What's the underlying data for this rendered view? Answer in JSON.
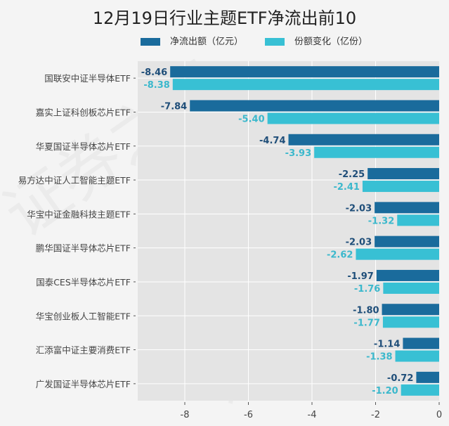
{
  "chart_data": {
    "type": "bar",
    "orientation": "horizontal",
    "title": "12月19日行业主题ETF净流出前10",
    "xlabel": "",
    "ylabel": "",
    "xlim": [
      -9.5,
      0
    ],
    "xticks": [
      -8,
      -6,
      -4,
      -2,
      0
    ],
    "xtick_labels": [
      "-8",
      "-6",
      "-4",
      "-2",
      "0"
    ],
    "grid": true,
    "legend_position": "top",
    "categories": [
      "国联安中证半导体ETF",
      "嘉实上证科创板芯片ETF",
      "华夏国证半导体芯片ETF",
      "易方达中证人工智能主题ETF",
      "华宝中证金融科技主题ETF",
      "鹏华国证半导体芯片ETF",
      "国泰CES半导体芯片ETF",
      "华宝创业板人工智能ETF",
      "汇添富中证主要消费ETF",
      "广发国证半导体芯片ETF"
    ],
    "series": [
      {
        "name": "净流出额（亿元）",
        "color": "#1a6b9c",
        "values": [
          -8.46,
          -7.84,
          -4.74,
          -2.25,
          -2.03,
          -2.03,
          -1.97,
          -1.8,
          -1.14,
          -0.72
        ],
        "labels": [
          "-8.46",
          "-7.84",
          "-4.74",
          "-2.25",
          "-2.03",
          "-2.03",
          "-1.97",
          "-1.80",
          "-1.14",
          "-0.72"
        ]
      },
      {
        "name": "份额变化（亿份）",
        "color": "#38c0d4",
        "values": [
          -8.38,
          -5.4,
          -3.93,
          -2.41,
          -1.32,
          -2.62,
          -1.76,
          -1.77,
          -1.38,
          -1.2
        ],
        "labels": [
          "-8.38",
          "-5.40",
          "-3.93",
          "-2.41",
          "-1.32",
          "-2.62",
          "-1.76",
          "-1.77",
          "-1.38",
          "-1.20"
        ]
      }
    ],
    "watermark": "证券之星"
  }
}
